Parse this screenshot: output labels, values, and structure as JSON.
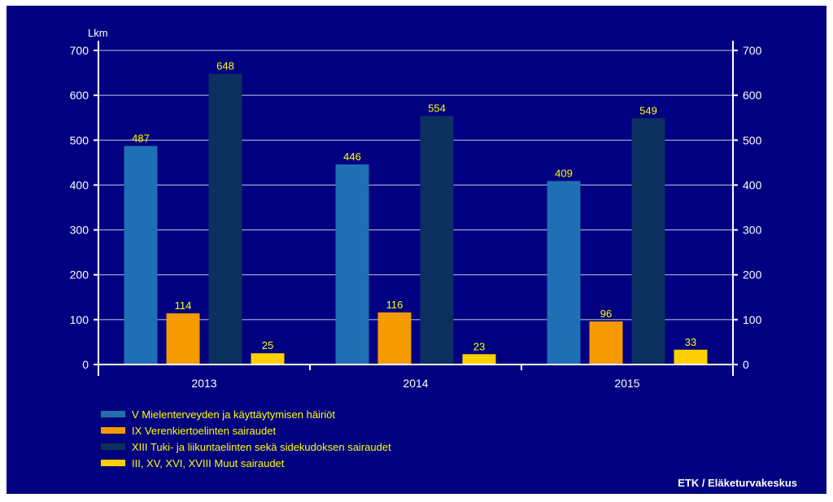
{
  "chart_data": {
    "type": "bar",
    "unit_label": "Lkm",
    "categories": [
      "2013",
      "2014",
      "2015"
    ],
    "ylim": [
      0,
      700
    ],
    "y_ticks": [
      "0",
      "100",
      "200",
      "300",
      "400",
      "500",
      "600",
      "700"
    ],
    "grid": true,
    "legend_position": "bottom-left",
    "series": [
      {
        "name": "V Mielenterveyden ja käyttäytymisen häiriöt",
        "values": [
          487,
          446,
          409
        ],
        "color": "#1f6fb5"
      },
      {
        "name": "IX Verenkiertoelinten sairaudet",
        "values": [
          114,
          116,
          96
        ],
        "color": "#f59a00"
      },
      {
        "name": "XIII Tuki- ja liikuntaelinten sekä sidekudoksen sairaudet",
        "values": [
          648,
          554,
          549
        ],
        "color": "#0b3060"
      },
      {
        "name": "III, XV, XVI, XVIII Muut sairaudet",
        "values": [
          25,
          23,
          33
        ],
        "color": "#ffd000"
      }
    ]
  },
  "source": "ETK / Eläketurvakeskus",
  "colors": {
    "background": "#000080",
    "axis": "#ffffff",
    "data_label": "#ffff00",
    "legend_text": "#ffff00"
  }
}
